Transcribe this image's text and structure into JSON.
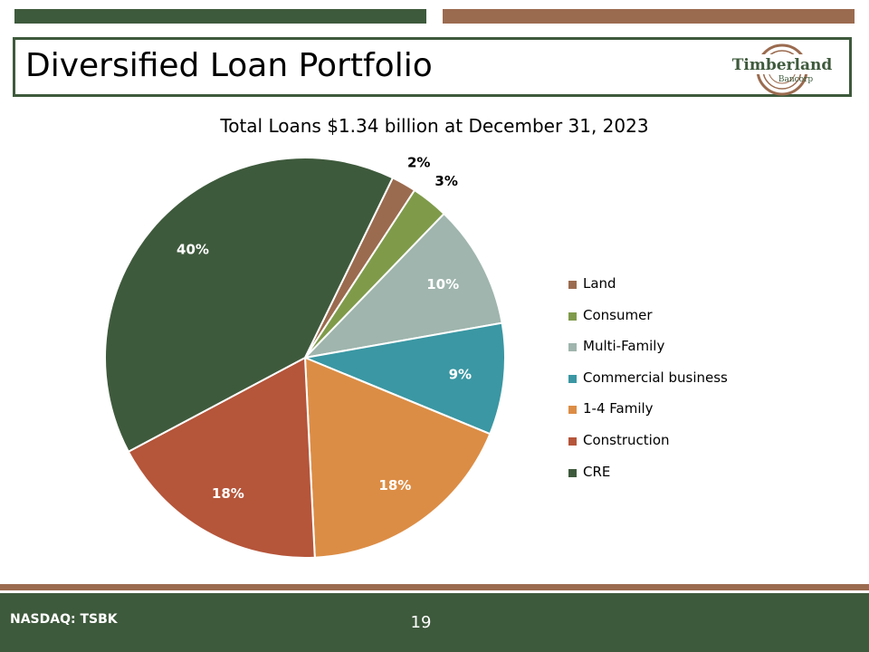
{
  "slide": {
    "title": "Diversified Loan Portfolio",
    "logo_name": "Timberland",
    "logo_sub": "Bancorp",
    "footer_ticker": "NASDAQ: TSBK",
    "page_number": "19"
  },
  "colors": {
    "dark_green": "#3e5a3c",
    "brown_accent": "#9b6b4f",
    "white": "#ffffff"
  },
  "chart_data": {
    "type": "pie",
    "title": "Total Loans $1.34 billion at December 31, 2023",
    "start_angle_deg": 64,
    "direction": "clockwise",
    "legend_position": "right",
    "slices": [
      {
        "name": "Land",
        "value": 2,
        "label": "2%",
        "color": "#9b6b4f"
      },
      {
        "name": "Consumer",
        "value": 3,
        "label": "3%",
        "color": "#7f9b4a"
      },
      {
        "name": "Multi-Family",
        "value": 10,
        "label": "10%",
        "color": "#9fb5ad"
      },
      {
        "name": "Commercial business",
        "value": 9,
        "label": "9%",
        "color": "#3a97a3"
      },
      {
        "name": "1-4 Family",
        "value": 18,
        "label": "18%",
        "color": "#dc8d45"
      },
      {
        "name": "Construction",
        "value": 18,
        "label": "18%",
        "color": "#b5553a"
      },
      {
        "name": "CRE",
        "value": 40,
        "label": "40%",
        "color": "#3e5a3c"
      }
    ]
  }
}
